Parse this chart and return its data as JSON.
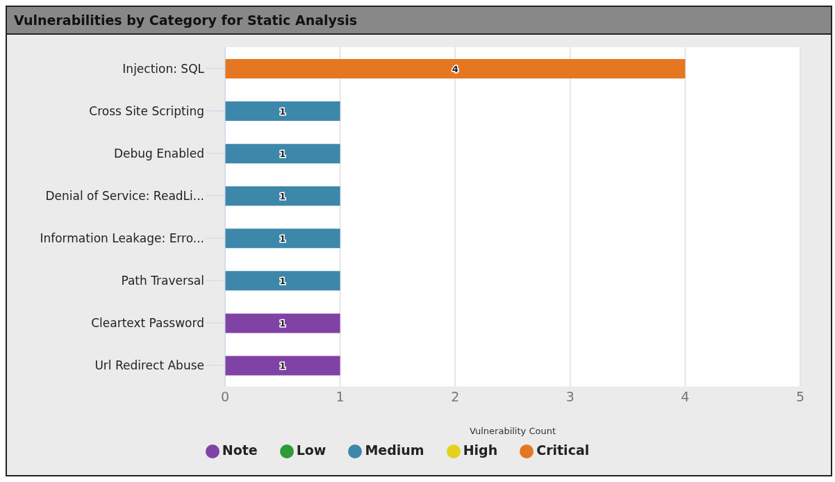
{
  "chart_data": {
    "type": "bar",
    "title": "Vulnerabilities by Category for Static Analysis",
    "orientation": "horizontal",
    "stacked": true,
    "categories": [
      "Injection: SQL",
      "Cross Site Scripting",
      "Debug Enabled",
      "Denial of Service: ReadLi...",
      "Information Leakage: Erro...",
      "Path Traversal",
      "Cleartext Password",
      "Url Redirect Abuse"
    ],
    "series": [
      {
        "name": "Note",
        "color": "#8142a6",
        "values": [
          null,
          null,
          null,
          null,
          null,
          null,
          1,
          1
        ]
      },
      {
        "name": "Low",
        "color": "#2e9a3a",
        "values": [
          null,
          null,
          null,
          null,
          null,
          null,
          null,
          null
        ]
      },
      {
        "name": "Medium",
        "color": "#3d87ab",
        "values": [
          null,
          1,
          1,
          1,
          1,
          1,
          null,
          null
        ]
      },
      {
        "name": "High",
        "color": "#e2d21c",
        "values": [
          null,
          null,
          null,
          null,
          null,
          null,
          null,
          null
        ]
      },
      {
        "name": "Critical",
        "color": "#e57722",
        "values": [
          4,
          null,
          null,
          null,
          null,
          null,
          null,
          null
        ]
      }
    ],
    "xlim": [
      0,
      5
    ],
    "xticks": [
      0,
      1,
      2,
      3,
      4,
      5
    ],
    "xlabel": "Vulnerability Count",
    "grid": "x",
    "legend": "bottom",
    "data_labels": true
  }
}
